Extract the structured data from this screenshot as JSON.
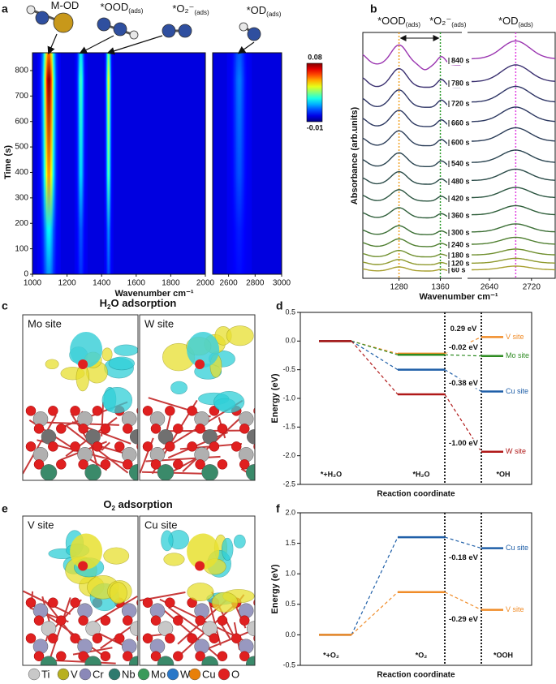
{
  "a": {
    "label": "a",
    "species": [
      {
        "name": "M-OD"
      },
      {
        "name": "*OOD",
        "sub": "(ads)"
      },
      {
        "name": "*O₂⁻",
        "sub": "(ads)"
      },
      {
        "name": "*OD",
        "sub": "(ads)"
      }
    ],
    "bands": [
      {
        "x": 1095,
        "max": 0.08
      },
      {
        "x": 1280,
        "max": 0.03
      },
      {
        "x": 1440,
        "max": 0.045
      },
      {
        "x": 2680,
        "max": 0.012
      }
    ],
    "xlabel": "Wavenumber cm⁻¹",
    "ylabel": "Time (s)",
    "xlim": [
      1000,
      2000
    ],
    "xticks": [
      1000,
      1200,
      1400,
      1600,
      1800,
      2000
    ],
    "x2lim": [
      2480,
      3000
    ],
    "x2ticks": [
      2600,
      2800,
      3000
    ],
    "ylim": [
      0,
      870
    ],
    "yticks": [
      0,
      100,
      200,
      300,
      400,
      500,
      600,
      700,
      800
    ],
    "clim": [
      -0.01,
      0.08
    ]
  },
  "b": {
    "label": "b",
    "headers": [
      {
        "name": "*OOD",
        "sub": "(ads)"
      },
      {
        "name": "*O₂⁻",
        "sub": "(ads)"
      },
      {
        "name": "*OD",
        "sub": "(ads)"
      }
    ],
    "peaks": [
      {
        "x": 1280,
        "color": "#f0a020"
      },
      {
        "x": 1360,
        "color": "#2a9a2a"
      },
      {
        "x": 2690,
        "color": "#e040e0",
        "axis": "x2"
      }
    ],
    "times": [
      "60 s",
      "120 s",
      "180 s",
      "240 s",
      "300 s",
      "360 s",
      "420 s",
      "480 s",
      "540 s",
      "600 s",
      "660 s",
      "720 s",
      "780 s",
      "840 s"
    ],
    "colors": [
      "#a8a030",
      "#8f9a2e",
      "#6f8f2e",
      "#4f7f30",
      "#3a6e34",
      "#2f5f3a",
      "#2b5540",
      "#2a4b48",
      "#2a4450",
      "#2b3d58",
      "#2c3860",
      "#2e3565",
      "#3a3070",
      "#9a35b0"
    ],
    "xlabel": "Wavenumber cm⁻¹",
    "ylabel": "Absorbance (arb.units)",
    "xlim": [
      1210,
      1400
    ],
    "xticks": [
      1280,
      1360
    ],
    "x2lim": [
      2600,
      2765
    ],
    "x2ticks": [
      2640,
      2720
    ]
  },
  "c": {
    "label": "c",
    "title": "H",
    "title_sub": "2",
    "title_rest": "O adsorption",
    "sites": [
      "Mo site",
      "W site"
    ]
  },
  "d": {
    "label": "d",
    "ylabel": "Energy (eV)",
    "xlabel": "Reaction coordinate",
    "categories": [
      "*+H₂O",
      "*H₂O",
      "*OH"
    ],
    "ylim": [
      -2.5,
      0.5
    ],
    "yticks": [
      -2.5,
      {
        "value": -2,
        "label": "-2.0"
      },
      -1.5,
      {
        "value": -1,
        "label": "-1.0"
      },
      -0.5,
      {
        "value": 0,
        "label": "0.0"
      },
      0.5
    ],
    "series": [
      {
        "name": "V site",
        "color": "#f08c28",
        "values": [
          0,
          -0.22,
          0.07
        ],
        "change": "0.29 eV"
      },
      {
        "name": "Mo site",
        "color": "#2e8b22",
        "values": [
          0,
          -0.24,
          -0.26
        ],
        "change": "-0.02 eV"
      },
      {
        "name": "Cu site",
        "color": "#1f5fa8",
        "values": [
          0,
          -0.5,
          -0.88
        ],
        "change": "-0.38 eV"
      },
      {
        "name": "W site",
        "color": "#b01818",
        "values": [
          0,
          -0.93,
          -1.93
        ],
        "change": "-1.00 eV"
      }
    ]
  },
  "e": {
    "label": "e",
    "title": "O",
    "title_sub": "2",
    "title_rest": " adsorption",
    "sites": [
      "V site",
      "Cu site"
    ],
    "elements": [
      {
        "name": "Ti",
        "color": "#c8c8c8"
      },
      {
        "name": "V",
        "color": "#b8b020"
      },
      {
        "name": "Cr",
        "color": "#8a88b8"
      },
      {
        "name": "Nb",
        "color": "#2e7a6e"
      },
      {
        "name": "Mo",
        "color": "#3a9a5a"
      },
      {
        "name": "W",
        "color": "#2a78c8"
      },
      {
        "name": "Cu",
        "color": "#e8800a"
      },
      {
        "name": "O",
        "color": "#e02020"
      }
    ]
  },
  "f": {
    "label": "f",
    "ylabel": "Energy (eV)",
    "xlabel": "Reaction coordinate",
    "categories": [
      "*+O₂",
      "*O₂",
      "*OOH"
    ],
    "ylim": [
      -0.5,
      2.0
    ],
    "yticks": [
      -0.5,
      {
        "value": 0,
        "label": "0.0"
      },
      0.5,
      {
        "value": 1,
        "label": "1.0"
      },
      1.5,
      {
        "value": 2,
        "label": "2.0"
      }
    ],
    "series": [
      {
        "name": "Cu site",
        "color": "#1f5fa8",
        "values": [
          0,
          1.6,
          1.42
        ],
        "change": "-0.18 eV"
      },
      {
        "name": "V site",
        "color": "#f08c28",
        "values": [
          0,
          0.7,
          0.41
        ],
        "change": "-0.29 eV"
      }
    ]
  }
}
